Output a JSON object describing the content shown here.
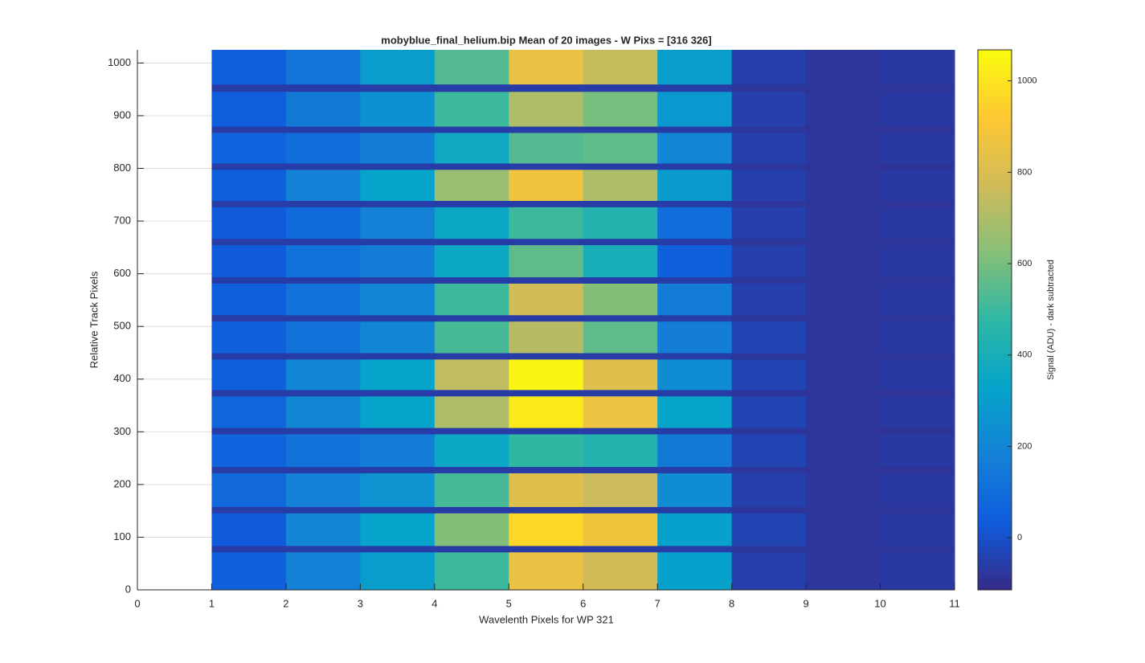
{
  "chart_data": {
    "type": "heatmap",
    "title": "mobyblue_final_helium.bip  Mean of 20 images - W Pixs = [316  326]",
    "xlabel": "Wavelenth Pixels for WP 321",
    "ylabel": "Relative Track Pixels",
    "xlim": [
      0,
      11
    ],
    "xticks": [
      0,
      1,
      2,
      3,
      4,
      5,
      6,
      7,
      8,
      9,
      10,
      11
    ],
    "ylim": [
      0,
      1025
    ],
    "yticks": [
      0,
      100,
      200,
      300,
      400,
      500,
      600,
      700,
      800,
      900,
      1000
    ],
    "grid": true,
    "xbins": [
      1,
      2,
      3,
      4,
      5,
      6,
      7,
      8,
      9,
      10,
      11
    ],
    "ybins": [
      0,
      72,
      84,
      146,
      158,
      222,
      234,
      296,
      308,
      368,
      380,
      438,
      450,
      510,
      522,
      582,
      594,
      655,
      667,
      727,
      739,
      798,
      810,
      868,
      880,
      946,
      960,
      1025
    ],
    "values": [
      [
        50,
        180,
        300,
        500,
        850,
        780,
        320,
        -50,
        -80,
        -70
      ],
      [
        -60,
        -60,
        -60,
        -60,
        -60,
        -60,
        -60,
        -80,
        -85,
        -85
      ],
      [
        30,
        200,
        330,
        620,
        960,
        880,
        320,
        -40,
        -80,
        -70
      ],
      [
        -60,
        -60,
        -60,
        -60,
        -60,
        -60,
        -60,
        -80,
        -85,
        -85
      ],
      [
        80,
        180,
        260,
        520,
        820,
        760,
        230,
        -50,
        -80,
        -70
      ],
      [
        -60,
        -60,
        -60,
        -60,
        -60,
        -60,
        -60,
        -80,
        -85,
        -85
      ],
      [
        60,
        120,
        160,
        350,
        480,
        440,
        150,
        -40,
        -80,
        -70
      ],
      [
        -60,
        -60,
        -60,
        -60,
        -60,
        -60,
        -60,
        -80,
        -85,
        -85
      ],
      [
        70,
        200,
        330,
        700,
        1020,
        860,
        330,
        -40,
        -80,
        -70
      ],
      [
        -60,
        -60,
        -60,
        -60,
        -60,
        -60,
        -60,
        -80,
        -85,
        -85
      ],
      [
        50,
        200,
        330,
        740,
        1050,
        820,
        230,
        -40,
        -80,
        -70
      ],
      [
        -60,
        -60,
        -60,
        -60,
        -60,
        -60,
        -60,
        -80,
        -85,
        -85
      ],
      [
        50,
        120,
        200,
        520,
        720,
        560,
        170,
        -40,
        -80,
        -70
      ],
      [
        -60,
        -60,
        -60,
        -60,
        -60,
        -60,
        -60,
        -80,
        -85,
        -85
      ],
      [
        40,
        120,
        200,
        500,
        780,
        620,
        160,
        -50,
        -80,
        -70
      ],
      [
        -60,
        -60,
        -60,
        -60,
        -60,
        -60,
        -60,
        -80,
        -85,
        -85
      ],
      [
        30,
        120,
        160,
        350,
        560,
        400,
        50,
        -50,
        -80,
        -70
      ],
      [
        -60,
        -60,
        -60,
        -60,
        -60,
        -60,
        -60,
        -80,
        -85,
        -85
      ],
      [
        30,
        90,
        180,
        350,
        500,
        440,
        100,
        -50,
        -80,
        -70
      ],
      [
        -60,
        -60,
        -60,
        -60,
        -60,
        -60,
        -60,
        -80,
        -85,
        -85
      ],
      [
        40,
        180,
        330,
        660,
        870,
        700,
        290,
        -50,
        -80,
        -70
      ],
      [
        -60,
        -60,
        -60,
        -60,
        -60,
        -60,
        -60,
        -80,
        -85,
        -85
      ],
      [
        60,
        100,
        170,
        360,
        540,
        560,
        200,
        -50,
        -80,
        -70
      ],
      [
        -60,
        -60,
        -60,
        -60,
        -60,
        -60,
        -60,
        -80,
        -85,
        -85
      ],
      [
        40,
        150,
        250,
        500,
        700,
        600,
        280,
        -50,
        -80,
        -70
      ],
      [
        -60,
        -60,
        -60,
        -60,
        -60,
        -60,
        -60,
        -80,
        -85,
        -85
      ],
      [
        40,
        130,
        300,
        540,
        850,
        750,
        310,
        -50,
        -80,
        -70
      ]
    ],
    "colormap": [
      "#352a87",
      "#0f5cdd",
      "#1481d6",
      "#06a4ca",
      "#2eb7a4",
      "#87bf77",
      "#d1bb59",
      "#fec832",
      "#f9fb0e"
    ],
    "colorbar": {
      "label": "Signal (ADU) - dark subtracted",
      "clim": [
        -114,
        1068
      ],
      "cticks": [
        0,
        200,
        400,
        600,
        800,
        1000
      ]
    }
  }
}
